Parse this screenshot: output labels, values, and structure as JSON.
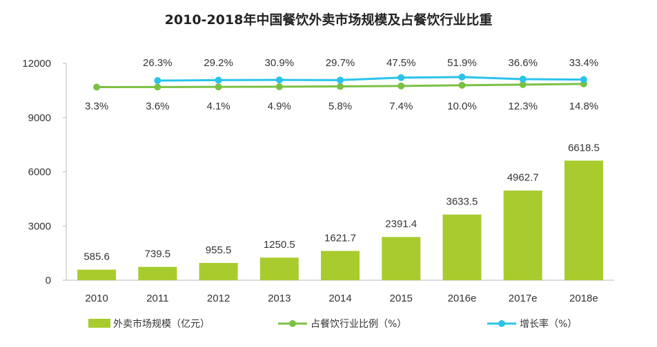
{
  "chart_data": {
    "type": "bar",
    "title": "2010-2018年中国餐饮外卖市场规模及占餐饮行业比重",
    "categories": [
      "2010",
      "2011",
      "2012",
      "2013",
      "2014",
      "2015",
      "2016e",
      "2017e",
      "2018e"
    ],
    "ylim": [
      0,
      12000
    ],
    "yticks": [
      "12000",
      "9000",
      "6000",
      "3000",
      "0"
    ],
    "series": [
      {
        "name": "外卖市场规模（亿元）",
        "type": "bar",
        "color": "#a8cc2e",
        "values": [
          585.6,
          739.5,
          955.5,
          1250.5,
          1621.7,
          2391.4,
          3633.5,
          4962.7,
          6618.5
        ],
        "labels": [
          "585.6",
          "739.5",
          "955.5",
          "1250.5",
          "1621.7",
          "2391.4",
          "3633.5",
          "4962.7",
          "6618.5"
        ]
      },
      {
        "name": "占餐饮行业比例（%）",
        "type": "line",
        "color": "#7ac143",
        "values": [
          3.3,
          3.6,
          4.1,
          4.9,
          5.8,
          7.4,
          10.0,
          12.3,
          14.8
        ],
        "labels": [
          "3.3%",
          "3.6%",
          "4.1%",
          "4.9%",
          "5.8%",
          "7.4%",
          "10.0%",
          "12.3%",
          "14.8%"
        ]
      },
      {
        "name": "增长率（%）",
        "type": "line",
        "color": "#29c3ec",
        "values": [
          null,
          26.3,
          29.2,
          30.9,
          29.7,
          47.5,
          51.9,
          36.6,
          33.4
        ],
        "labels": [
          "",
          "26.3%",
          "29.2%",
          "30.9%",
          "29.7%",
          "47.5%",
          "51.9%",
          "36.6%",
          "33.4%"
        ]
      }
    ],
    "legend": "bottom",
    "grid": false
  }
}
